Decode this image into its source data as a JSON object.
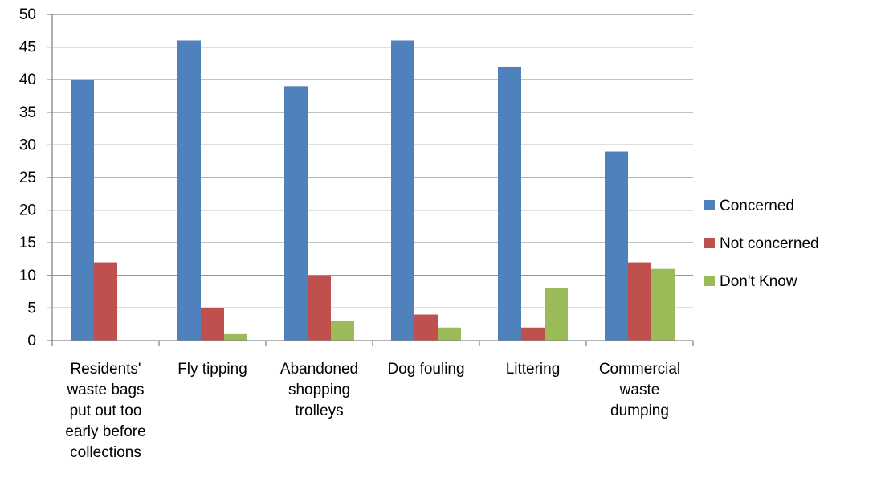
{
  "chart_data": {
    "type": "bar",
    "categories": [
      [
        "Residents'",
        "waste bags",
        "put out too",
        "early before",
        "collections"
      ],
      [
        "Fly tipping"
      ],
      [
        "Abandoned",
        "shopping",
        "trolleys"
      ],
      [
        "Dog fouling"
      ],
      [
        "Littering"
      ],
      [
        "Commercial",
        "waste",
        "dumping"
      ]
    ],
    "series": [
      {
        "name": "Concerned",
        "color": "#4F81BD",
        "values": [
          40,
          46,
          39,
          46,
          42,
          29
        ]
      },
      {
        "name": "Not concerned",
        "color": "#C0504D",
        "values": [
          12,
          5,
          10,
          4,
          2,
          12
        ]
      },
      {
        "name": "Don't Know",
        "color": "#9BBB59",
        "values": [
          0,
          1,
          3,
          2,
          8,
          11
        ]
      }
    ],
    "ylim": [
      0,
      50
    ],
    "yticks": [
      0,
      5,
      10,
      15,
      20,
      25,
      30,
      35,
      40,
      45,
      50
    ],
    "grid": true,
    "legend_position": "right"
  }
}
